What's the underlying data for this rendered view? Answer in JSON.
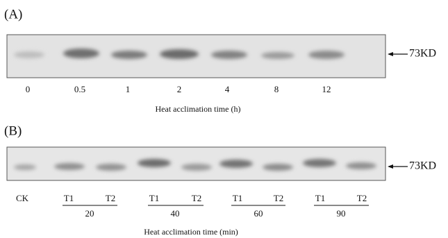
{
  "panel_a": {
    "label": "(A)",
    "lanes": [
      "0",
      "0.5",
      "1",
      "2",
      "4",
      "8",
      "12"
    ],
    "marker": "73KD",
    "x_title": "Heat acclimation time (h)"
  },
  "panel_b": {
    "label": "(B)",
    "lanes": [
      "CK",
      "T1",
      "T2",
      "T1",
      "T2",
      "T1",
      "T2",
      "T1",
      "T2"
    ],
    "groups": [
      "20",
      "40",
      "60",
      "90"
    ],
    "marker": "73KD",
    "x_title": "Heat acclimation time (min)"
  }
}
